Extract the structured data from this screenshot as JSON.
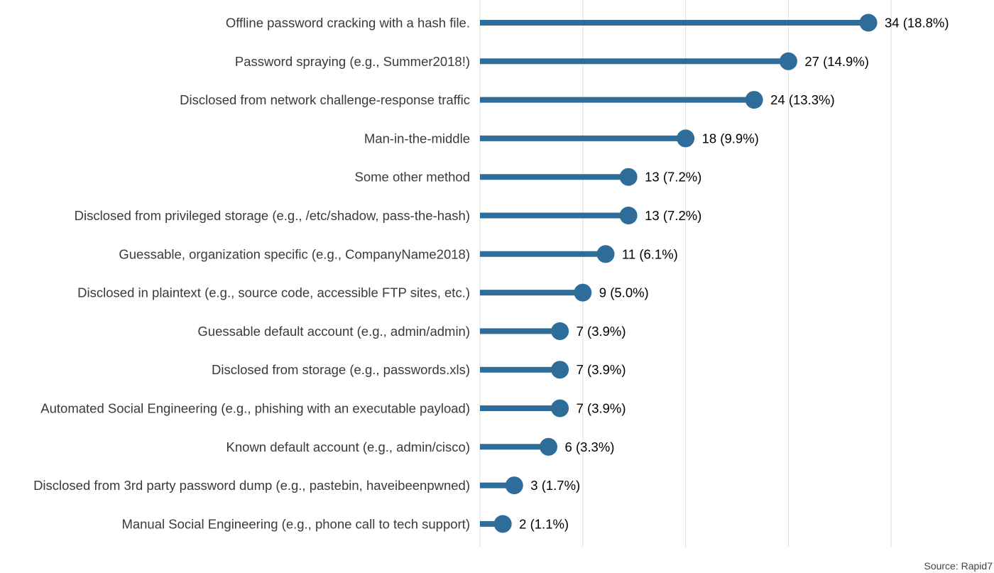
{
  "chart_data": {
    "type": "bar",
    "style": "lollipop",
    "orientation": "horizontal",
    "categories": [
      "Offline password cracking with a hash file.",
      "Password spraying (e.g., Summer2018!)",
      "Disclosed from network challenge-response traffic",
      "Man-in-the-middle",
      "Some other method",
      "Disclosed from privileged storage (e.g., /etc/shadow, pass-the-hash)",
      "Guessable, organization specific (e.g., CompanyName2018)",
      "Disclosed in plaintext (e.g., source code, accessible FTP sites, etc.)",
      "Guessable default account (e.g., admin/admin)",
      "Disclosed from storage (e.g., passwords.xls)",
      "Automated Social Engineering (e.g., phishing with an executable payload)",
      "Known default account (e.g., admin/cisco)",
      "Disclosed from 3rd party password dump (e.g., pastebin, haveibeenpwned)",
      "Manual Social Engineering (e.g., phone call to tech support)"
    ],
    "values": [
      34,
      27,
      24,
      18,
      13,
      13,
      11,
      9,
      7,
      7,
      7,
      6,
      3,
      2
    ],
    "value_labels": [
      "34 (18.8%)",
      "27 (14.9%)",
      "24 (13.3%)",
      "18 (9.9%)",
      "13 (7.2%)",
      "13 (7.2%)",
      "11 (6.1%)",
      "9 (5.0%)",
      "7 (3.9%)",
      "7 (3.9%)",
      "7 (3.9%)",
      "6 (3.3%)",
      "3 (1.7%)",
      "2 (1.1%)"
    ],
    "xlim": [
      0,
      45
    ],
    "grid_x": [
      0,
      9,
      18,
      27,
      36
    ],
    "grid": true,
    "title": "",
    "xlabel": "",
    "ylabel": "",
    "colors": {
      "bar": "#2e6d99",
      "grid": "#dcdcdc",
      "label": "#3a3a3a",
      "value": "#000000"
    }
  },
  "source": "Source: Rapid7"
}
